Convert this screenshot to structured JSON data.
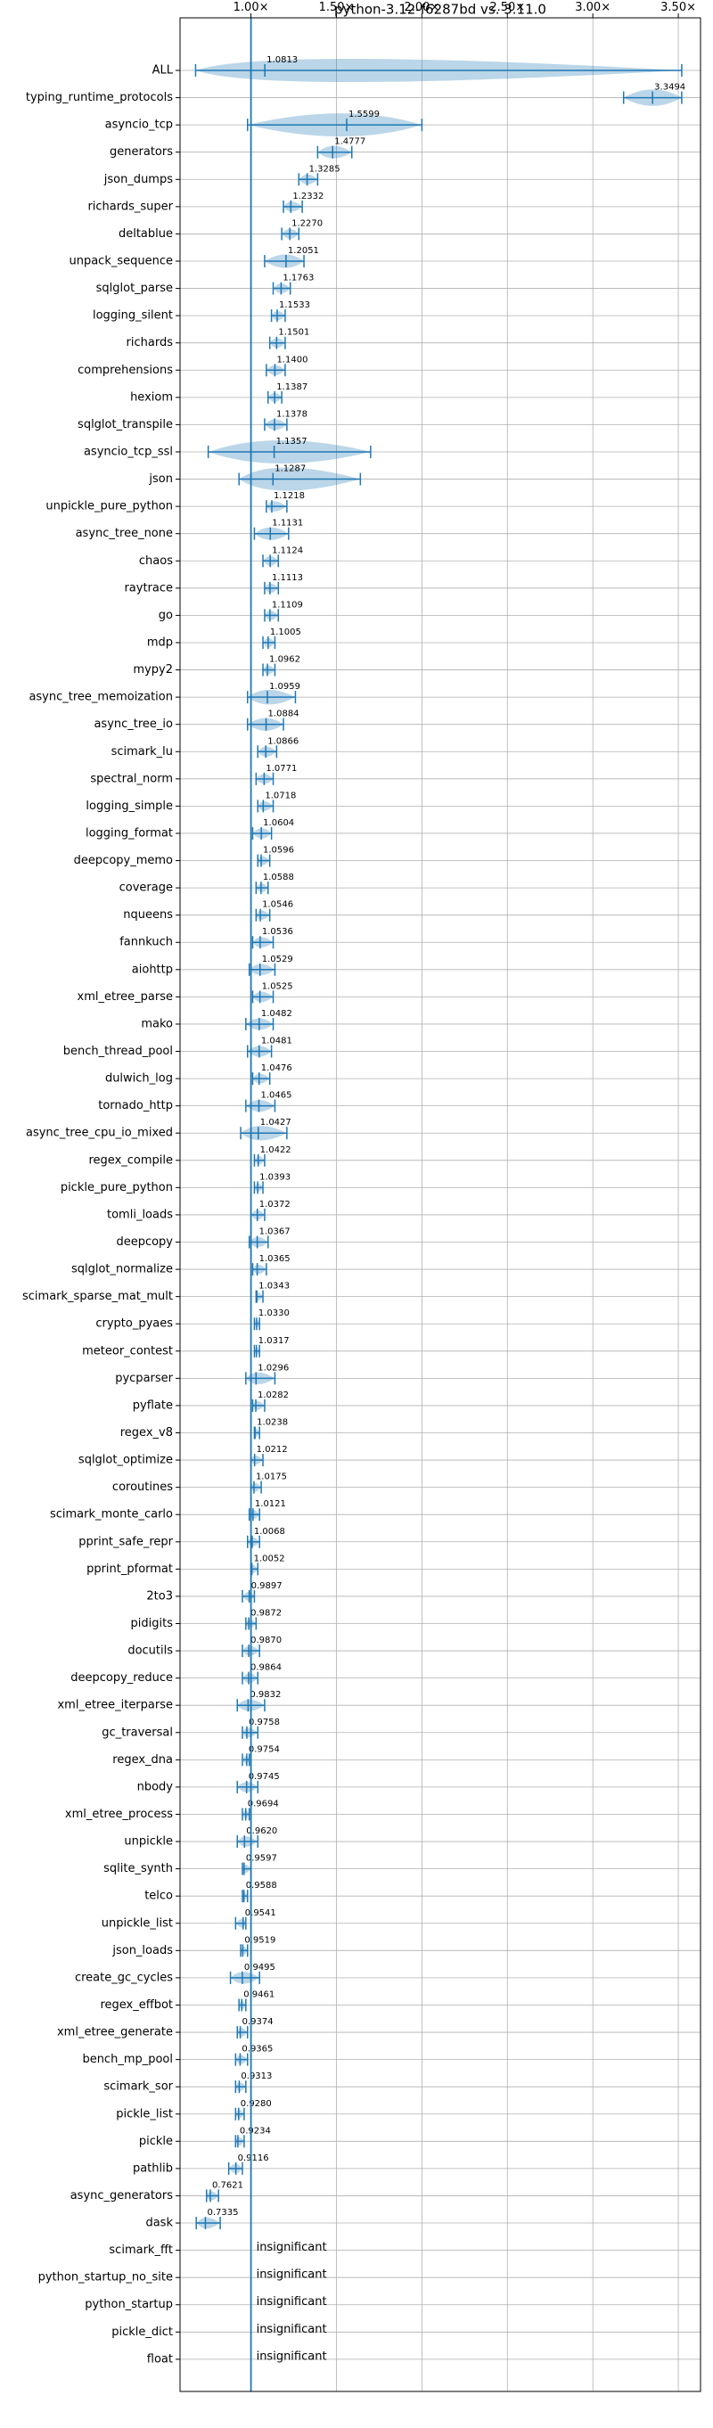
{
  "chart_data": {
    "type": "violin",
    "title": "python-3.12-f6287bd vs. 3.11.0",
    "categories": [
      "ALL",
      "typing_runtime_protocols",
      "asyncio_tcp",
      "generators",
      "json_dumps",
      "richards_super",
      "deltablue",
      "unpack_sequence",
      "sqlglot_parse",
      "logging_silent",
      "richards",
      "comprehensions",
      "hexiom",
      "sqlglot_transpile",
      "asyncio_tcp_ssl",
      "json",
      "unpickle_pure_python",
      "async_tree_none",
      "chaos",
      "raytrace",
      "go",
      "mdp",
      "mypy2",
      "async_tree_memoization",
      "async_tree_io",
      "scimark_lu",
      "spectral_norm",
      "logging_simple",
      "logging_format",
      "deepcopy_memo",
      "coverage",
      "nqueens",
      "fannkuch",
      "aiohttp",
      "xml_etree_parse",
      "mako",
      "bench_thread_pool",
      "dulwich_log",
      "tornado_http",
      "async_tree_cpu_io_mixed",
      "regex_compile",
      "pickle_pure_python",
      "tomli_loads",
      "deepcopy",
      "sqlglot_normalize",
      "scimark_sparse_mat_mult",
      "crypto_pyaes",
      "meteor_contest",
      "pycparser",
      "pyflate",
      "regex_v8",
      "sqlglot_optimize",
      "coroutines",
      "scimark_monte_carlo",
      "pprint_safe_repr",
      "pprint_pformat",
      "2to3",
      "pidigits",
      "docutils",
      "deepcopy_reduce",
      "xml_etree_iterparse",
      "gc_traversal",
      "regex_dna",
      "nbody",
      "xml_etree_process",
      "unpickle",
      "sqlite_synth",
      "telco",
      "unpickle_list",
      "json_loads",
      "create_gc_cycles",
      "regex_effbot",
      "xml_etree_generate",
      "bench_mp_pool",
      "scimark_sor",
      "pickle_list",
      "pickle",
      "pathlib",
      "async_generators",
      "dask",
      "scimark_fft",
      "python_startup_no_site",
      "python_startup",
      "pickle_dict",
      "float"
    ],
    "values": [
      1.0813,
      3.3494,
      1.5599,
      1.4777,
      1.3285,
      1.2332,
      1.227,
      1.2051,
      1.1763,
      1.1533,
      1.1501,
      1.14,
      1.1387,
      1.1378,
      1.1357,
      1.1287,
      1.1218,
      1.1131,
      1.1124,
      1.1113,
      1.1109,
      1.1005,
      1.0962,
      1.0959,
      1.0884,
      1.0866,
      1.0771,
      1.0718,
      1.0604,
      1.0596,
      1.0588,
      1.0546,
      1.0536,
      1.0529,
      1.0525,
      1.0482,
      1.0481,
      1.0476,
      1.0465,
      1.0427,
      1.0422,
      1.0393,
      1.0372,
      1.0367,
      1.0365,
      1.0343,
      1.033,
      1.0317,
      1.0296,
      1.0282,
      1.0238,
      1.0212,
      1.0175,
      1.0121,
      1.0068,
      1.0052,
      0.9897,
      0.9872,
      0.987,
      0.9864,
      0.9832,
      0.9758,
      0.9754,
      0.9745,
      0.9694,
      0.962,
      0.9597,
      0.9588,
      0.9541,
      0.9519,
      0.9495,
      0.9461,
      0.9374,
      0.9365,
      0.9313,
      0.928,
      0.9234,
      0.9116,
      0.7621,
      0.7335,
      null,
      null,
      null,
      null,
      null
    ],
    "value_labels": [
      "1.0813",
      "3.3494",
      "1.5599",
      "1.4777",
      "1.3285",
      "1.2332",
      "1.2270",
      "1.2051",
      "1.1763",
      "1.1533",
      "1.1501",
      "1.1400",
      "1.1387",
      "1.1378",
      "1.1357",
      "1.1287",
      "1.1218",
      "1.1131",
      "1.1124",
      "1.1113",
      "1.1109",
      "1.1005",
      "1.0962",
      "1.0959",
      "1.0884",
      "1.0866",
      "1.0771",
      "1.0718",
      "1.0604",
      "1.0596",
      "1.0588",
      "1.0546",
      "1.0536",
      "1.0529",
      "1.0525",
      "1.0482",
      "1.0481",
      "1.0476",
      "1.0465",
      "1.0427",
      "1.0422",
      "1.0393",
      "1.0372",
      "1.0367",
      "1.0365",
      "1.0343",
      "1.0330",
      "1.0317",
      "1.0296",
      "1.0282",
      "1.0238",
      "1.0212",
      "1.0175",
      "1.0121",
      "1.0068",
      "1.0052",
      "0.9897",
      "0.9872",
      "0.9870",
      "0.9864",
      "0.9832",
      "0.9758",
      "0.9754",
      "0.9745",
      "0.9694",
      "0.9620",
      "0.9597",
      "0.9588",
      "0.9541",
      "0.9519",
      "0.9495",
      "0.9461",
      "0.9374",
      "0.9365",
      "0.9313",
      "0.9280",
      "0.9234",
      "0.9116",
      "0.7621",
      "0.7335",
      "insignificant",
      "insignificant",
      "insignificant",
      "insignificant",
      "insignificant"
    ],
    "min": [
      0.676,
      3.18,
      0.98,
      1.39,
      1.28,
      1.19,
      1.18,
      1.08,
      1.13,
      1.12,
      1.11,
      1.09,
      1.1,
      1.08,
      0.75,
      0.93,
      1.09,
      1.02,
      1.07,
      1.08,
      1.08,
      1.07,
      1.07,
      0.98,
      0.98,
      1.04,
      1.03,
      1.04,
      1.01,
      1.04,
      1.03,
      1.03,
      1.01,
      0.99,
      1.01,
      0.97,
      0.98,
      1.01,
      0.97,
      0.94,
      1.02,
      1.02,
      1.0,
      0.99,
      1.01,
      1.03,
      1.02,
      1.02,
      0.97,
      1.01,
      1.02,
      1.0,
      1.0,
      0.99,
      0.98,
      1.0,
      0.95,
      0.97,
      0.95,
      0.95,
      0.92,
      0.95,
      0.95,
      0.92,
      0.95,
      0.92,
      0.95,
      0.95,
      0.91,
      0.94,
      0.88,
      0.93,
      0.92,
      0.91,
      0.91,
      0.91,
      0.91,
      0.87,
      0.74,
      0.68,
      null,
      null,
      null,
      null,
      null
    ],
    "max": [
      3.52,
      3.52,
      2.0,
      1.59,
      1.39,
      1.3,
      1.28,
      1.31,
      1.23,
      1.2,
      1.2,
      1.2,
      1.18,
      1.21,
      1.7,
      1.64,
      1.21,
      1.22,
      1.16,
      1.16,
      1.16,
      1.14,
      1.14,
      1.26,
      1.19,
      1.15,
      1.13,
      1.13,
      1.12,
      1.11,
      1.1,
      1.11,
      1.13,
      1.14,
      1.13,
      1.13,
      1.12,
      1.11,
      1.14,
      1.21,
      1.08,
      1.07,
      1.08,
      1.1,
      1.09,
      1.07,
      1.05,
      1.05,
      1.14,
      1.08,
      1.05,
      1.07,
      1.06,
      1.05,
      1.05,
      1.04,
      1.02,
      1.03,
      1.05,
      1.04,
      1.08,
      1.04,
      0.99,
      1.04,
      0.99,
      1.04,
      1.0,
      0.98,
      0.97,
      0.98,
      1.05,
      0.97,
      0.98,
      0.98,
      0.97,
      0.96,
      0.96,
      0.95,
      0.81,
      0.82,
      null,
      null,
      null,
      null,
      null
    ],
    "color": "#1f77b4",
    "reference": 1,
    "xlim": [
      0.585,
      3.63
    ],
    "xticks": [
      {
        "value": 1,
        "label": "1.00×"
      },
      {
        "value": 1.5,
        "label": "1.50×"
      },
      {
        "value": 2,
        "label": "2.00×"
      },
      {
        "value": 2.5,
        "label": "2.50×"
      },
      {
        "value": 3,
        "label": "3.00×"
      },
      {
        "value": 3.5,
        "label": "3.50×"
      }
    ],
    "grid": true
  }
}
